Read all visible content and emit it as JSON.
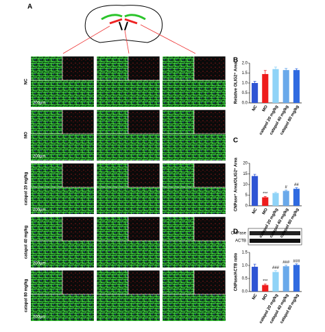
{
  "panel_a": {
    "letter": "A",
    "rows": [
      "NC",
      "MO",
      "catapol 20 mg/kg",
      "catapol 40 mg/kg",
      "catapol 80 mg/kg"
    ],
    "scale_bar": "200μm"
  },
  "blot": {
    "bands": [
      "CNPase",
      "ACTB"
    ]
  },
  "chart_data": [
    {
      "type": "bar",
      "letter": "B",
      "y_label": "Relative OLIG2⁺ Area",
      "categories": [
        "NC",
        "MO",
        "catapol 20 mg/kg",
        "catapol 40 mg/kg",
        "catapol 80 mg/kg"
      ],
      "values": [
        1.0,
        1.45,
        1.7,
        1.65,
        1.65
      ],
      "errors": [
        0.08,
        0.18,
        0.1,
        0.08,
        0.07
      ],
      "colors": [
        "#2f55d4",
        "#ee1c1c",
        "#8fd3f7",
        "#6aa9ea",
        "#2f6ae0"
      ],
      "ylim": [
        0,
        2
      ],
      "yticks": [
        {
          "value": 0,
          "label": "0.0"
        },
        {
          "value": 0.5,
          "label": "0.5"
        },
        {
          "value": 1,
          "label": "1.0"
        },
        {
          "value": 1.5,
          "label": "1.5"
        },
        {
          "value": 2,
          "label": "2.0"
        }
      ]
    },
    {
      "type": "bar",
      "letter": "C",
      "y_label": "CNPase⁺ Area/OLIG2⁺ Area",
      "categories": [
        "NC",
        "MO",
        "catapol 20 mg/kg",
        "catapol 40 mg/kg",
        "catapol 80 mg/kg"
      ],
      "values": [
        14,
        4,
        6,
        7,
        8
      ],
      "errors": [
        0.8,
        0.4,
        0.4,
        0.4,
        0.5
      ],
      "significance": [
        null,
        "***",
        null,
        "#",
        "##"
      ],
      "colors": [
        "#2f55d4",
        "#ee1c1c",
        "#8fd3f7",
        "#6aa9ea",
        "#2f6ae0"
      ],
      "ylim": [
        0,
        20
      ],
      "yticks": [
        0,
        5,
        10,
        15,
        20
      ]
    },
    {
      "type": "bar",
      "letter": "D",
      "y_label": "CNPase/ACTB ratio",
      "categories": [
        "NC",
        "MO",
        "catapol 20 mg/kg",
        "catapol 40 mg/kg",
        "catapol 80 mg/kg"
      ],
      "values": [
        0.95,
        0.25,
        0.75,
        0.97,
        1.02
      ],
      "errors": [
        0.1,
        0.04,
        0.05,
        0.04,
        0.04
      ],
      "significance": [
        null,
        "***",
        "###",
        "###",
        "###"
      ],
      "colors": [
        "#2f55d4",
        "#ee1c1c",
        "#8fd3f7",
        "#6aa9ea",
        "#2f6ae0"
      ],
      "ylim": [
        0,
        1.5
      ],
      "yticks": [
        {
          "value": 0,
          "label": "0.0"
        },
        {
          "value": 0.5,
          "label": "0.5"
        },
        {
          "value": 1,
          "label": "1.0"
        },
        {
          "value": 1.5,
          "label": "1.5"
        }
      ]
    }
  ]
}
